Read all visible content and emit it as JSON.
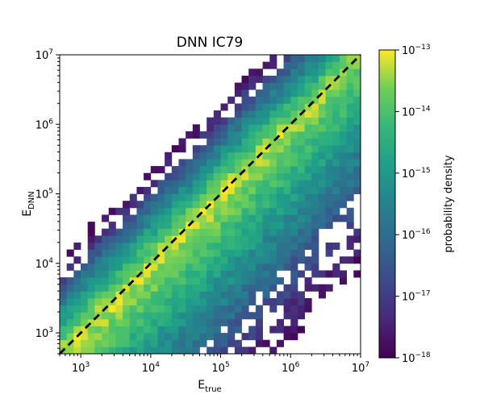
{
  "chart_data": {
    "type": "heatmap",
    "title": "DNN IC79",
    "xlabel": {
      "main": "E",
      "sub": "true"
    },
    "ylabel": {
      "main": "E",
      "sub": "DNN"
    },
    "xscale": "log",
    "yscale": "log",
    "xlim": [
      500,
      10000000
    ],
    "ylim": [
      500,
      10000000
    ],
    "bins": 43,
    "x_ticks": [
      {
        "base": "10",
        "exp": "3",
        "value": 1000
      },
      {
        "base": "10",
        "exp": "4",
        "value": 10000
      },
      {
        "base": "10",
        "exp": "5",
        "value": 100000
      },
      {
        "base": "10",
        "exp": "6",
        "value": 1000000
      },
      {
        "base": "10",
        "exp": "7",
        "value": 10000000
      }
    ],
    "y_ticks": [
      {
        "base": "10",
        "exp": "3",
        "value": 1000
      },
      {
        "base": "10",
        "exp": "4",
        "value": 10000
      },
      {
        "base": "10",
        "exp": "5",
        "value": 100000
      },
      {
        "base": "10",
        "exp": "6",
        "value": 1000000
      },
      {
        "base": "10",
        "exp": "7",
        "value": 10000000
      }
    ],
    "colorbar": {
      "label": "probability density",
      "scale": "log",
      "range": [
        1e-18,
        1e-13
      ],
      "colormap": "viridis",
      "ticks": [
        {
          "base": "10",
          "exp": "−13",
          "value": 1e-13
        },
        {
          "base": "10",
          "exp": "−14",
          "value": 1e-14
        },
        {
          "base": "10",
          "exp": "−15",
          "value": 1e-15
        },
        {
          "base": "10",
          "exp": "−16",
          "value": 1e-16
        },
        {
          "base": "10",
          "exp": "−17",
          "value": 1e-17
        },
        {
          "base": "10",
          "exp": "−18",
          "value": 1e-18
        }
      ]
    },
    "density_model": {
      "description": "log10 density vs diagonal offset",
      "peak_log10": -13.2,
      "overestimate_falloff_per_decade": 2.6,
      "underestimate_falloff_per_decade": 1.0,
      "lower_clip_log10": -18.0
    },
    "reference_line": {
      "style": "dashed",
      "color": "#000000",
      "x": [
        500,
        10000000
      ],
      "y": [
        500,
        10000000
      ]
    }
  }
}
